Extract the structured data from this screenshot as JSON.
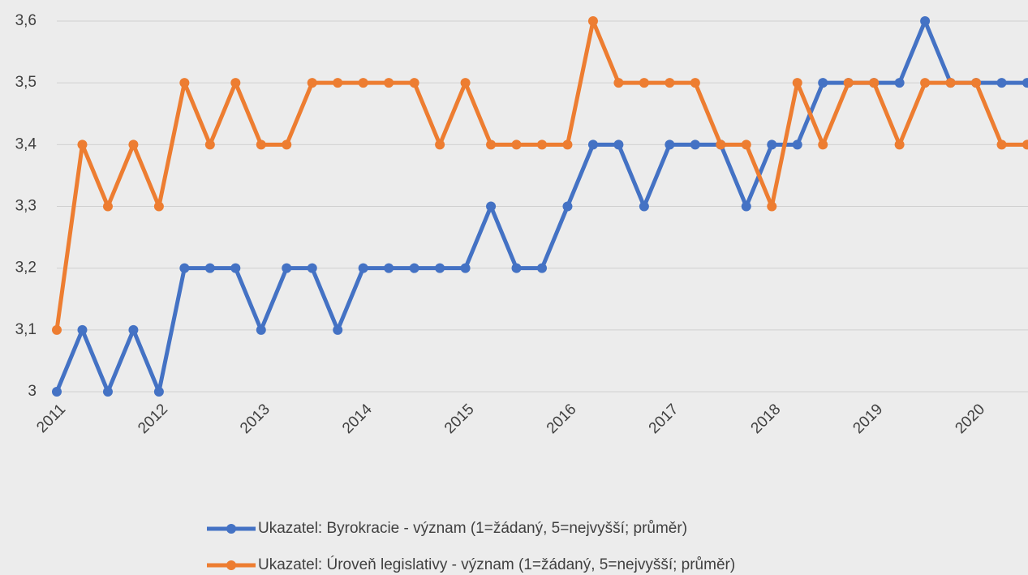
{
  "chart_data": {
    "type": "line",
    "categories": [
      "2011",
      null,
      null,
      null,
      "2012",
      null,
      null,
      null,
      "2013",
      null,
      null,
      null,
      "2014",
      null,
      null,
      null,
      "2015",
      null,
      null,
      null,
      "2016",
      null,
      null,
      null,
      "2017",
      null,
      null,
      null,
      "2018",
      null,
      null,
      null,
      "2019",
      null,
      null,
      null,
      "2020",
      null,
      null
    ],
    "series": [
      {
        "name": "Ukazatel: Byrokracie - význam (1=žádaný, 5=nejvyšší; průměr)",
        "color": "#4472c4",
        "values": [
          3.0,
          3.1,
          3.0,
          3.1,
          3.0,
          3.2,
          3.2,
          3.2,
          3.1,
          3.2,
          3.2,
          3.1,
          3.2,
          3.2,
          3.2,
          3.2,
          3.2,
          3.3,
          3.2,
          3.2,
          3.3,
          3.4,
          3.4,
          3.3,
          3.4,
          3.4,
          3.4,
          3.3,
          3.4,
          3.4,
          3.5,
          3.5,
          3.5,
          3.5,
          3.6,
          3.5,
          3.5,
          3.5,
          3.5
        ]
      },
      {
        "name": "Ukazatel: Úroveň legislativy - význam (1=žádaný, 5=nejvyšší; průměr)",
        "color": "#ed7d31",
        "values": [
          3.1,
          3.4,
          3.3,
          3.4,
          3.3,
          3.5,
          3.4,
          3.5,
          3.4,
          3.4,
          3.5,
          3.5,
          3.5,
          3.5,
          3.5,
          3.4,
          3.5,
          3.4,
          3.4,
          3.4,
          3.4,
          3.6,
          3.5,
          3.5,
          3.5,
          3.5,
          3.4,
          3.4,
          3.3,
          3.5,
          3.4,
          3.5,
          3.5,
          3.4,
          3.5,
          3.5,
          3.5,
          3.4,
          3.4
        ]
      }
    ],
    "ylim": [
      3,
      3.6
    ],
    "yticks": [
      3,
      {
        "value": 3.1,
        "label": "3,1"
      },
      {
        "value": 3.2,
        "label": "3,2"
      },
      {
        "value": 3.3,
        "label": "3,3"
      },
      {
        "value": 3.4,
        "label": "3,4"
      },
      {
        "value": 3.5,
        "label": "3,5"
      },
      {
        "value": 3.6,
        "label": "3,6"
      }
    ],
    "grid": true,
    "legend": "bottom"
  }
}
